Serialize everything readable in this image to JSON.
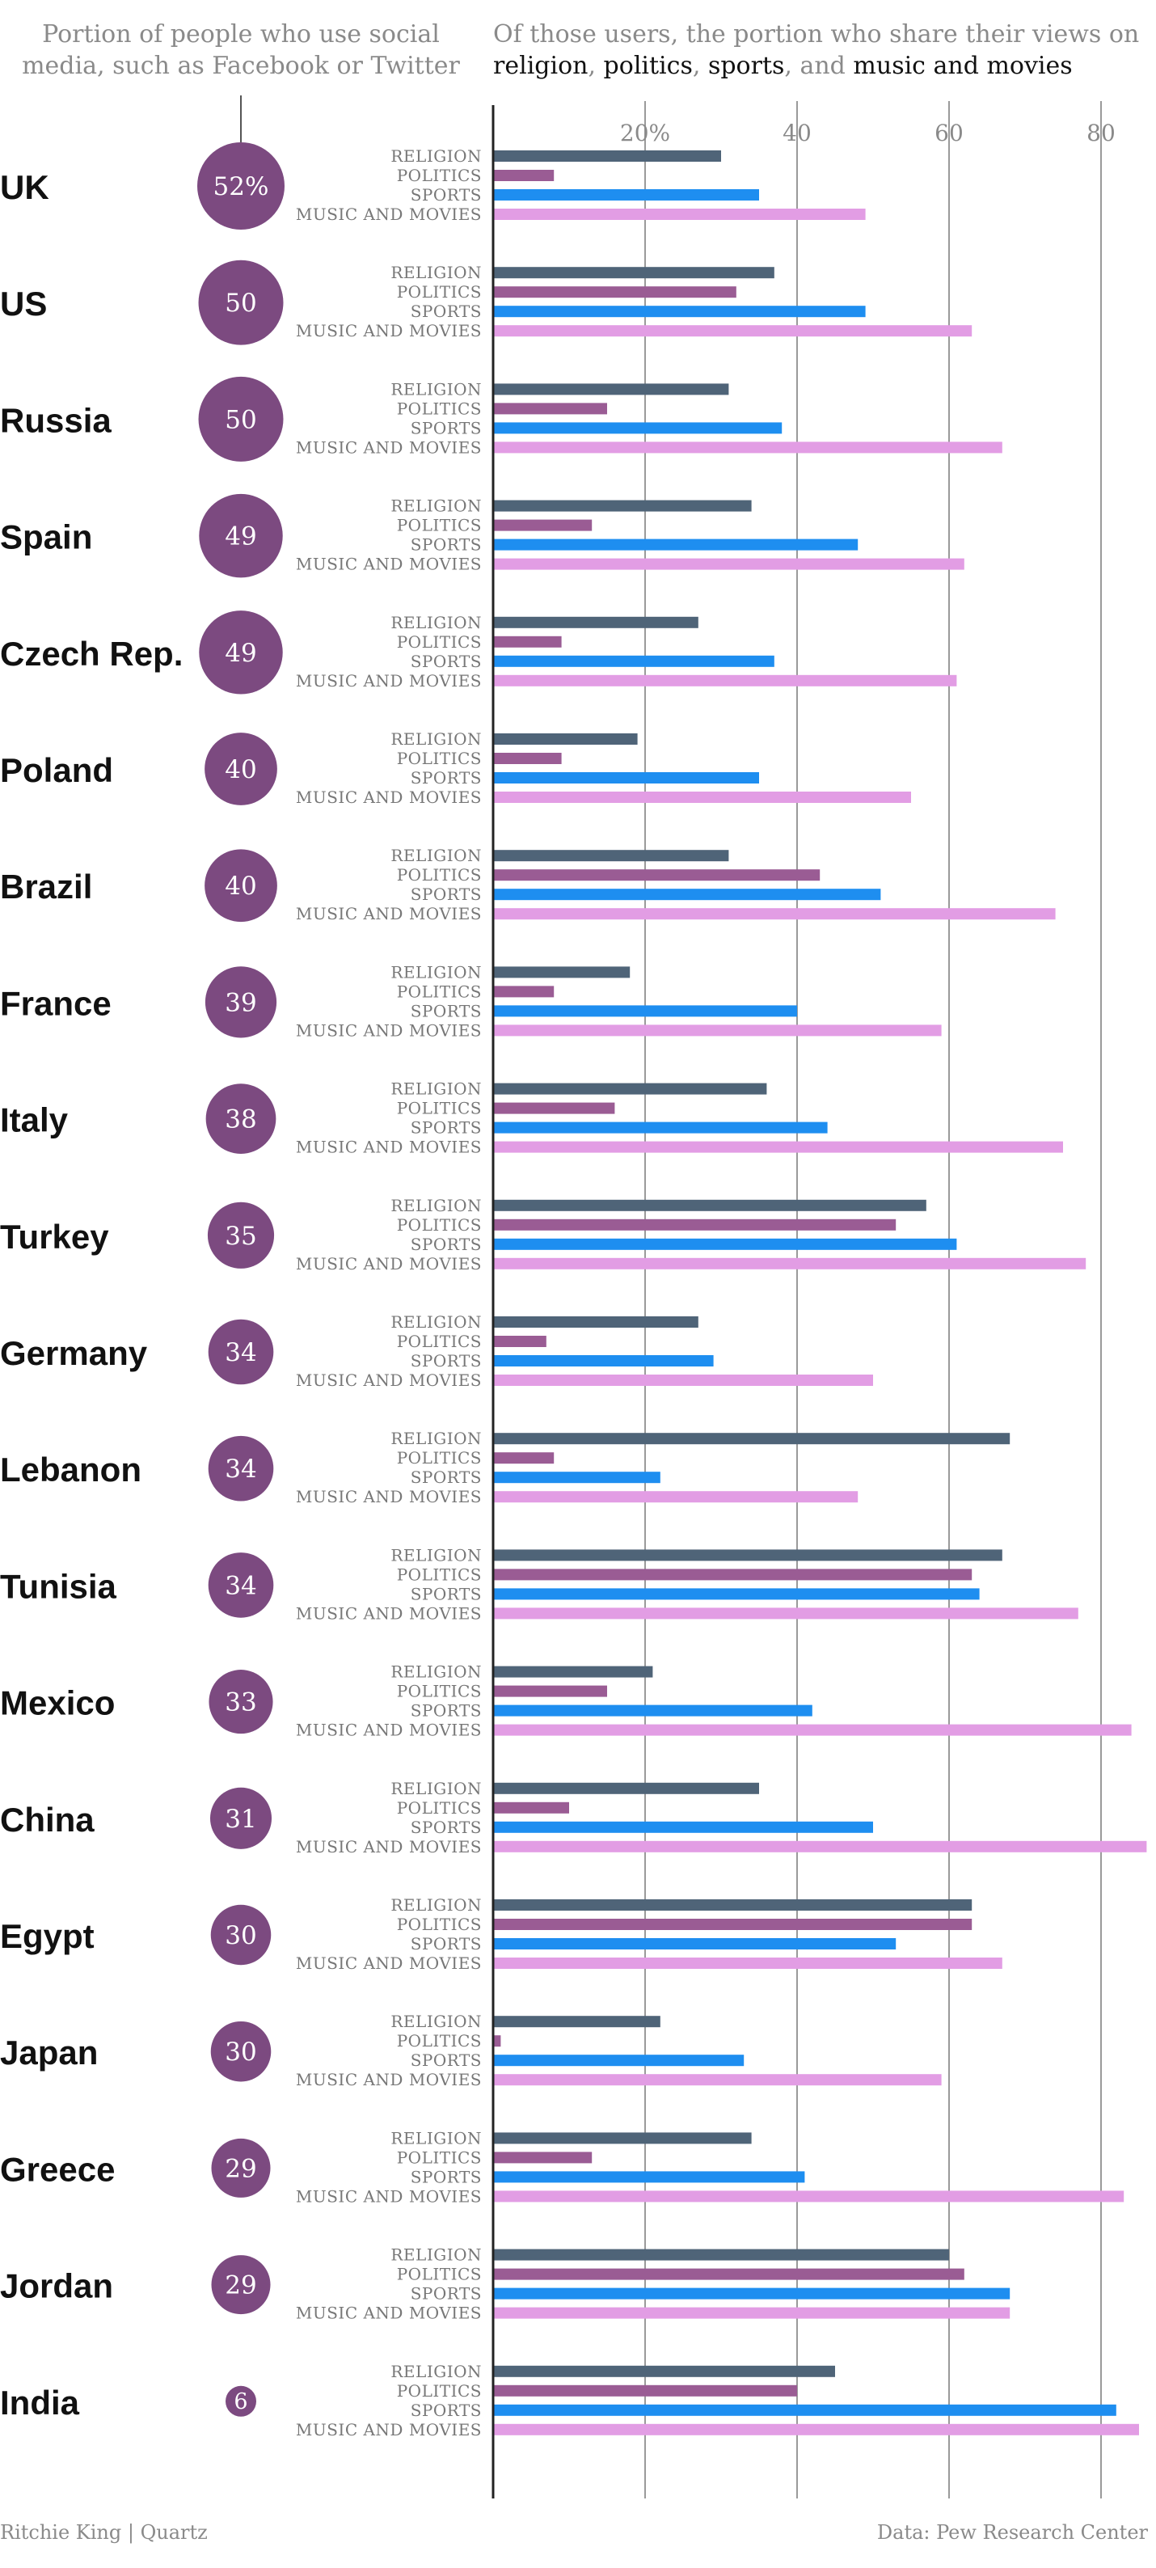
{
  "header": {
    "left_line1": "Portion of people who use social",
    "left_line2": "media, such as Facebook or Twitter",
    "right_line1": "Of those users, the portion who share their views on",
    "right_line2_parts": [
      {
        "text": "religion",
        "strong": true
      },
      {
        "text": ", ",
        "strong": false
      },
      {
        "text": "politics",
        "strong": true
      },
      {
        "text": ", ",
        "strong": false
      },
      {
        "text": "sports",
        "strong": true
      },
      {
        "text": ", and ",
        "strong": false
      },
      {
        "text": "music and movies",
        "strong": true
      }
    ]
  },
  "footer": {
    "credit": "Ritchie King | Quartz",
    "source": "Data: Pew Research Center"
  },
  "colors": {
    "religion": "#4f6478",
    "politics": "#9a5c94",
    "sports": "#1e8ef0",
    "music_and_movies": "#e29de4",
    "bubble": "#7c4a80",
    "gridline": "#9a9a9a",
    "axis": "#222222",
    "muted_text": "#8a8a8a"
  },
  "chart_data": {
    "type": "bar",
    "orientation": "horizontal",
    "xlim": [
      0,
      86
    ],
    "x_ticks": [
      {
        "value": 20,
        "label": "20%"
      },
      {
        "value": 40,
        "label": "40"
      },
      {
        "value": 60,
        "label": "60"
      },
      {
        "value": 80,
        "label": "80"
      }
    ],
    "grid": true,
    "series": [
      {
        "name": "RELIGION",
        "key": "religion"
      },
      {
        "name": "POLITICS",
        "key": "politics"
      },
      {
        "name": "SPORTS",
        "key": "sports"
      },
      {
        "name": "MUSIC AND MOVIES",
        "key": "music_and_movies"
      }
    ],
    "categories": [
      {
        "country": "UK",
        "social_media_label": "52%",
        "social_media_pct": 52,
        "values": [
          30,
          8,
          35,
          49
        ]
      },
      {
        "country": "US",
        "social_media_label": "50",
        "social_media_pct": 50,
        "values": [
          37,
          32,
          49,
          63
        ]
      },
      {
        "country": "Russia",
        "social_media_label": "50",
        "social_media_pct": 50,
        "values": [
          31,
          15,
          38,
          67
        ]
      },
      {
        "country": "Spain",
        "social_media_label": "49",
        "social_media_pct": 49,
        "values": [
          34,
          13,
          48,
          62
        ]
      },
      {
        "country": "Czech Rep.",
        "social_media_label": "49",
        "social_media_pct": 49,
        "values": [
          27,
          9,
          37,
          61
        ]
      },
      {
        "country": "Poland",
        "social_media_label": "40",
        "social_media_pct": 40,
        "values": [
          19,
          9,
          35,
          55
        ]
      },
      {
        "country": "Brazil",
        "social_media_label": "40",
        "social_media_pct": 40,
        "values": [
          31,
          43,
          51,
          74
        ]
      },
      {
        "country": "France",
        "social_media_label": "39",
        "social_media_pct": 39,
        "values": [
          18,
          8,
          40,
          59
        ]
      },
      {
        "country": "Italy",
        "social_media_label": "38",
        "social_media_pct": 38,
        "values": [
          36,
          16,
          44,
          75
        ]
      },
      {
        "country": "Turkey",
        "social_media_label": "35",
        "social_media_pct": 35,
        "values": [
          57,
          53,
          61,
          78
        ]
      },
      {
        "country": "Germany",
        "social_media_label": "34",
        "social_media_pct": 34,
        "values": [
          27,
          7,
          29,
          50
        ]
      },
      {
        "country": "Lebanon",
        "social_media_label": "34",
        "social_media_pct": 34,
        "values": [
          68,
          8,
          22,
          48
        ]
      },
      {
        "country": "Tunisia",
        "social_media_label": "34",
        "social_media_pct": 34,
        "values": [
          67,
          63,
          64,
          77
        ]
      },
      {
        "country": "Mexico",
        "social_media_label": "33",
        "social_media_pct": 33,
        "values": [
          21,
          15,
          42,
          84
        ]
      },
      {
        "country": "China",
        "social_media_label": "31",
        "social_media_pct": 31,
        "values": [
          35,
          10,
          50,
          86
        ]
      },
      {
        "country": "Egypt",
        "social_media_label": "30",
        "social_media_pct": 30,
        "values": [
          63,
          63,
          53,
          67
        ]
      },
      {
        "country": "Japan",
        "social_media_label": "30",
        "social_media_pct": 30,
        "values": [
          22,
          1,
          33,
          59
        ]
      },
      {
        "country": "Greece",
        "social_media_label": "29",
        "social_media_pct": 29,
        "values": [
          34,
          13,
          41,
          83
        ]
      },
      {
        "country": "Jordan",
        "social_media_label": "29",
        "social_media_pct": 29,
        "values": [
          60,
          62,
          68,
          68
        ]
      },
      {
        "country": "India",
        "social_media_label": "6",
        "social_media_pct": 6,
        "values": [
          45,
          40,
          82,
          85
        ]
      }
    ]
  }
}
